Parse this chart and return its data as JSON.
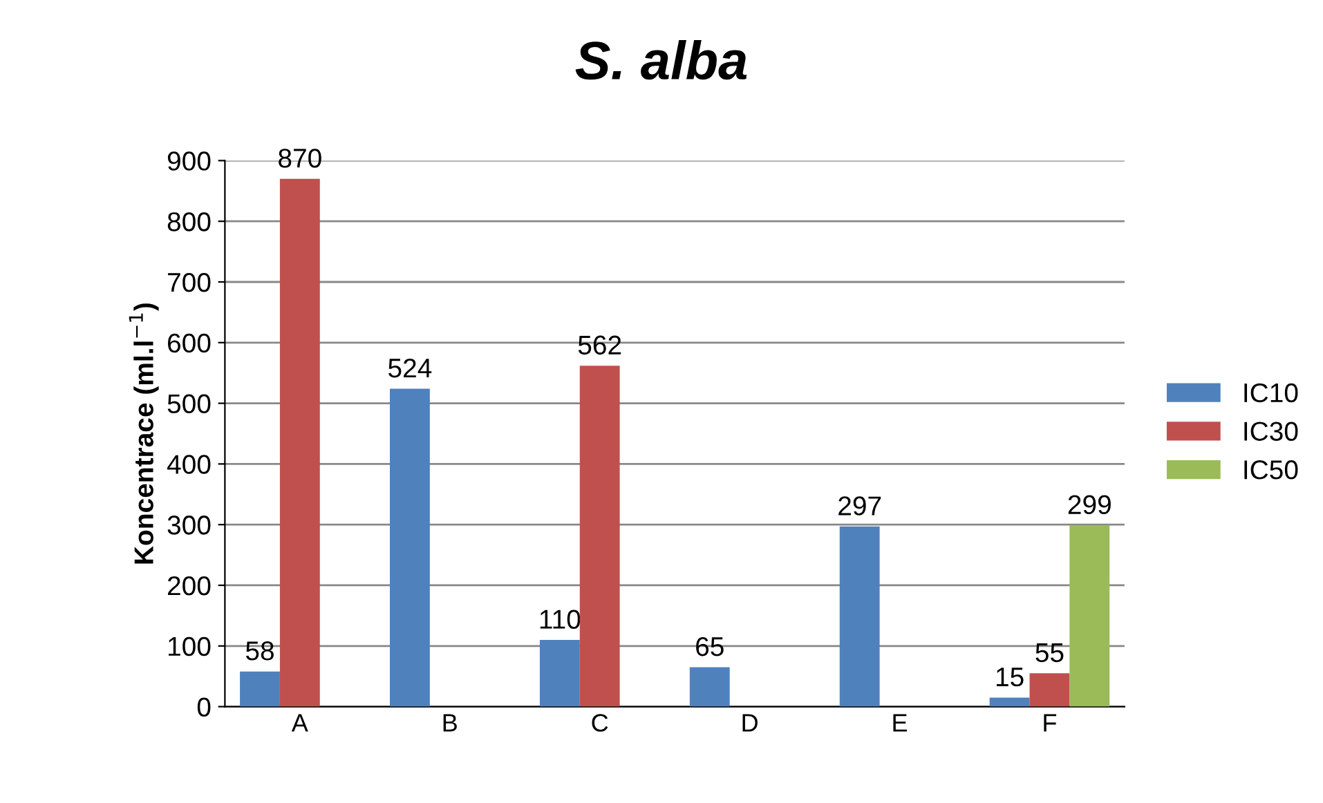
{
  "chart_data": {
    "type": "bar",
    "title": "S. alba",
    "ylabel": "Koncentrace (ml.l$^{−1}$)",
    "categories": [
      "A",
      "B",
      "C",
      "D",
      "E",
      "F"
    ],
    "series": [
      {
        "name": "IC10",
        "color": "#4f81bd",
        "values": [
          58,
          524,
          110,
          65,
          297,
          15
        ]
      },
      {
        "name": "IC30",
        "color": "#c0504d",
        "values": [
          870,
          null,
          562,
          null,
          null,
          55
        ]
      },
      {
        "name": "IC50",
        "color": "#9bbb59",
        "values": [
          null,
          null,
          null,
          null,
          null,
          299
        ]
      }
    ],
    "ylim": [
      0,
      900
    ],
    "yticks": [
      0,
      100,
      200,
      300,
      400,
      500,
      600,
      700,
      800,
      900
    ],
    "grid": "y",
    "legend": "right",
    "data_labels": true
  }
}
